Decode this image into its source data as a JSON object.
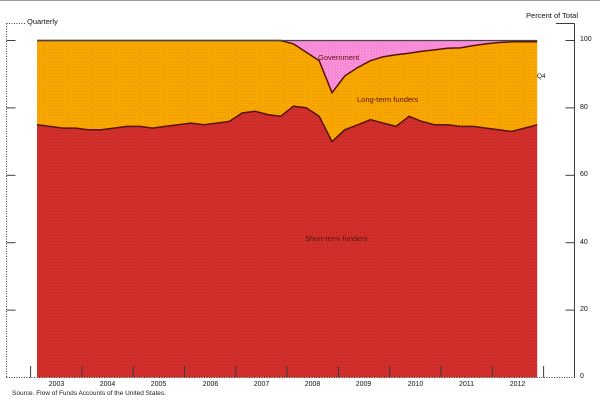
{
  "meta": {
    "frequency_label": "Quarterly",
    "axis_title": "Percent of Total",
    "last_obs_label": "Q4",
    "source": "Source. Flow of Funds Accounts of the United States."
  },
  "chart_data": {
    "type": "area",
    "stacked": true,
    "unit": "percent of total",
    "x_range": [
      "2003Q1",
      "2012Q4"
    ],
    "x_frequency": "quarterly",
    "x_year_labels": [
      "2003",
      "2004",
      "2005",
      "2006",
      "2007",
      "2008",
      "2009",
      "2010",
      "2011",
      "2012"
    ],
    "y_tick_labels": [
      "100",
      "80",
      "60",
      "40",
      "20",
      "0"
    ],
    "yticks": [
      20,
      40,
      60,
      80,
      100
    ],
    "ylim": [
      0,
      100
    ],
    "grid": false,
    "legend": "in-plot text labels",
    "axis_color": "#3c3c3c",
    "top_edge_color": "#474747",
    "series": [
      {
        "name": "Short-term funders",
        "fill": "#d7322d",
        "texture": "#b22120",
        "edge": "#55130d",
        "values": [
          75,
          74.5,
          74,
          74,
          73.5,
          73.5,
          74,
          74.5,
          74.5,
          74,
          74.5,
          75,
          75.5,
          75,
          75.5,
          76,
          78.5,
          79,
          78,
          77.5,
          80.5,
          80,
          77.5,
          70,
          73.5,
          75,
          76.5,
          75.5,
          74.5,
          77.5,
          76,
          75,
          75,
          74.5,
          74.5,
          74,
          73.5,
          73,
          74,
          75
        ]
      },
      {
        "name": "Long-term funders",
        "fill": "#fcac00",
        "texture": "#e68c00",
        "edge": "#55130d",
        "values": [
          25,
          25.5,
          26,
          26,
          26.5,
          26.5,
          26,
          25.5,
          25.5,
          26,
          25.5,
          25,
          24.5,
          25,
          24.5,
          24,
          21.5,
          21,
          22,
          22.5,
          18.5,
          16.5,
          16.5,
          14.5,
          16,
          17,
          17.5,
          19.7,
          21.3,
          18.7,
          20.8,
          22.2,
          22.7,
          23.3,
          24,
          25,
          25.9,
          26.6,
          25.6,
          24.6
        ]
      },
      {
        "name": "Government",
        "fill": "#f981d4",
        "texture": "#fcb3e5",
        "edge": "#55130d",
        "values": [
          0,
          0,
          0,
          0,
          0,
          0,
          0,
          0,
          0,
          0,
          0,
          0,
          0,
          0,
          0,
          0,
          0,
          0,
          0,
          0,
          1,
          3.5,
          6,
          15.5,
          10.5,
          8,
          6,
          4.8,
          4.2,
          3.8,
          3.2,
          2.8,
          2.3,
          2.2,
          1.5,
          1,
          0.6,
          0.4,
          0.4,
          0.4
        ]
      }
    ]
  }
}
